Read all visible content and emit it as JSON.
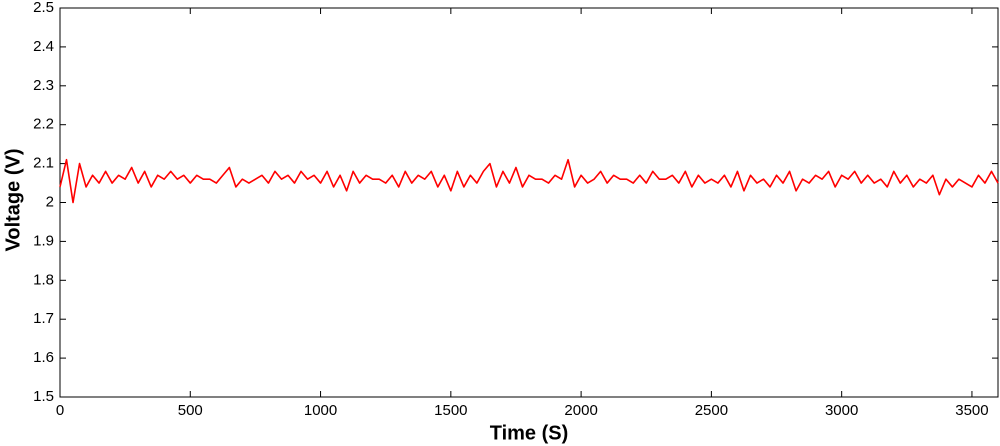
{
  "chart_data": {
    "type": "line",
    "xlabel": "Time (S)",
    "ylabel": "Voltage (V)",
    "x": [
      0,
      25,
      50,
      75,
      100,
      125,
      150,
      175,
      200,
      225,
      250,
      275,
      300,
      325,
      350,
      375,
      400,
      425,
      450,
      475,
      500,
      525,
      550,
      575,
      600,
      625,
      650,
      675,
      700,
      725,
      750,
      775,
      800,
      825,
      850,
      875,
      900,
      925,
      950,
      975,
      1000,
      1025,
      1050,
      1075,
      1100,
      1125,
      1150,
      1175,
      1200,
      1225,
      1250,
      1275,
      1300,
      1325,
      1350,
      1375,
      1400,
      1425,
      1450,
      1475,
      1500,
      1525,
      1550,
      1575,
      1600,
      1625,
      1650,
      1675,
      1700,
      1725,
      1750,
      1775,
      1800,
      1825,
      1850,
      1875,
      1900,
      1925,
      1950,
      1975,
      2000,
      2025,
      2050,
      2075,
      2100,
      2125,
      2150,
      2175,
      2200,
      2225,
      2250,
      2275,
      2300,
      2325,
      2350,
      2375,
      2400,
      2425,
      2450,
      2475,
      2500,
      2525,
      2550,
      2575,
      2600,
      2625,
      2650,
      2675,
      2700,
      2725,
      2750,
      2775,
      2800,
      2825,
      2850,
      2875,
      2900,
      2925,
      2950,
      2975,
      3000,
      3025,
      3050,
      3075,
      3100,
      3125,
      3150,
      3175,
      3200,
      3225,
      3250,
      3275,
      3300,
      3325,
      3350,
      3375,
      3400,
      3425,
      3450,
      3475,
      3500,
      3525,
      3550,
      3575,
      3600
    ],
    "values": [
      2.04,
      2.11,
      2.0,
      2.1,
      2.04,
      2.07,
      2.05,
      2.08,
      2.05,
      2.07,
      2.06,
      2.09,
      2.05,
      2.08,
      2.04,
      2.07,
      2.06,
      2.08,
      2.06,
      2.07,
      2.05,
      2.07,
      2.06,
      2.06,
      2.05,
      2.07,
      2.09,
      2.04,
      2.06,
      2.05,
      2.06,
      2.07,
      2.05,
      2.08,
      2.06,
      2.07,
      2.05,
      2.08,
      2.06,
      2.07,
      2.05,
      2.08,
      2.04,
      2.07,
      2.03,
      2.08,
      2.05,
      2.07,
      2.06,
      2.06,
      2.05,
      2.07,
      2.04,
      2.08,
      2.05,
      2.07,
      2.06,
      2.08,
      2.04,
      2.07,
      2.03,
      2.08,
      2.04,
      2.07,
      2.05,
      2.08,
      2.1,
      2.04,
      2.08,
      2.05,
      2.09,
      2.04,
      2.07,
      2.06,
      2.06,
      2.05,
      2.07,
      2.06,
      2.11,
      2.04,
      2.07,
      2.05,
      2.06,
      2.08,
      2.05,
      2.07,
      2.06,
      2.06,
      2.05,
      2.07,
      2.05,
      2.08,
      2.06,
      2.06,
      2.07,
      2.05,
      2.08,
      2.04,
      2.07,
      2.05,
      2.06,
      2.05,
      2.07,
      2.04,
      2.08,
      2.03,
      2.07,
      2.05,
      2.06,
      2.04,
      2.07,
      2.05,
      2.08,
      2.03,
      2.06,
      2.05,
      2.07,
      2.06,
      2.08,
      2.04,
      2.07,
      2.06,
      2.08,
      2.05,
      2.07,
      2.05,
      2.06,
      2.04,
      2.08,
      2.05,
      2.07,
      2.04,
      2.06,
      2.05,
      2.07,
      2.02,
      2.06,
      2.04,
      2.06,
      2.05,
      2.04,
      2.07,
      2.05,
      2.08,
      2.05
    ],
    "color": "#ff0000",
    "xlim": [
      0,
      3600
    ],
    "xticks": [
      0,
      500,
      1000,
      1500,
      2000,
      2500,
      3000,
      3500
    ],
    "ylim": [
      1.5,
      2.5
    ],
    "yticks": [
      1.5,
      1.6,
      1.7,
      1.8,
      1.9,
      2,
      2.1,
      2.2,
      2.3,
      2.4,
      2.5
    ]
  }
}
